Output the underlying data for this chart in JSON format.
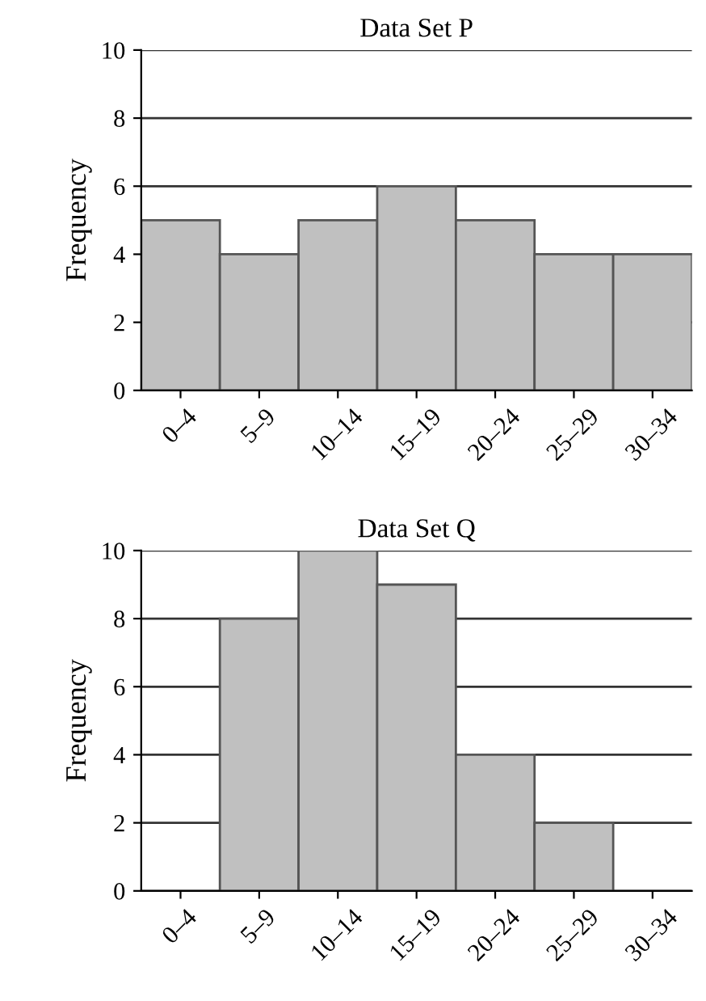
{
  "chart_data": [
    {
      "type": "bar",
      "title": "Data Set P",
      "ylabel": "Frequency",
      "categories": [
        "0–4",
        "5–9",
        "10–14",
        "15–19",
        "20–24",
        "25–29",
        "30–34"
      ],
      "values": [
        5,
        4,
        5,
        6,
        5,
        4,
        4
      ],
      "color": "#c0c0c0",
      "ylim": [
        0,
        10
      ],
      "yticks": [
        0,
        2,
        4,
        6,
        8,
        10
      ],
      "grid": "y"
    },
    {
      "type": "bar",
      "title": "Data Set Q",
      "ylabel": "Frequency",
      "categories": [
        "0–4",
        "5–9",
        "10–14",
        "15–19",
        "20–24",
        "25–29",
        "30–34"
      ],
      "values": [
        0,
        8,
        10,
        9,
        4,
        2,
        0
      ],
      "color": "#c0c0c0",
      "ylim": [
        0,
        10
      ],
      "yticks": [
        0,
        2,
        4,
        6,
        8,
        10
      ],
      "grid": "y"
    }
  ]
}
